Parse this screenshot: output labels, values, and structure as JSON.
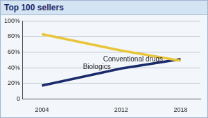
{
  "chart_data": {
    "type": "line",
    "title": "Top 100 sellers",
    "x": [
      2004,
      2012,
      2018
    ],
    "series": [
      {
        "name": "Conventional drugs",
        "color": "#e8c53a",
        "values": [
          83,
          62,
          49
        ]
      },
      {
        "name": "Biologics",
        "color": "#1b2a6b",
        "values": [
          17,
          39,
          51
        ]
      }
    ],
    "xlim": [
      2002,
      2020
    ],
    "xticks": [
      2004,
      2012,
      2018
    ],
    "ylim": [
      0,
      100
    ],
    "yticks": [
      0,
      {
        "value": 20,
        "label": "20%"
      },
      {
        "value": 40,
        "label": "40%"
      },
      {
        "value": 60,
        "label": "60%"
      },
      {
        "value": 80,
        "label": "80%"
      },
      {
        "value": 100,
        "label": "100%"
      }
    ],
    "grid": true
  }
}
